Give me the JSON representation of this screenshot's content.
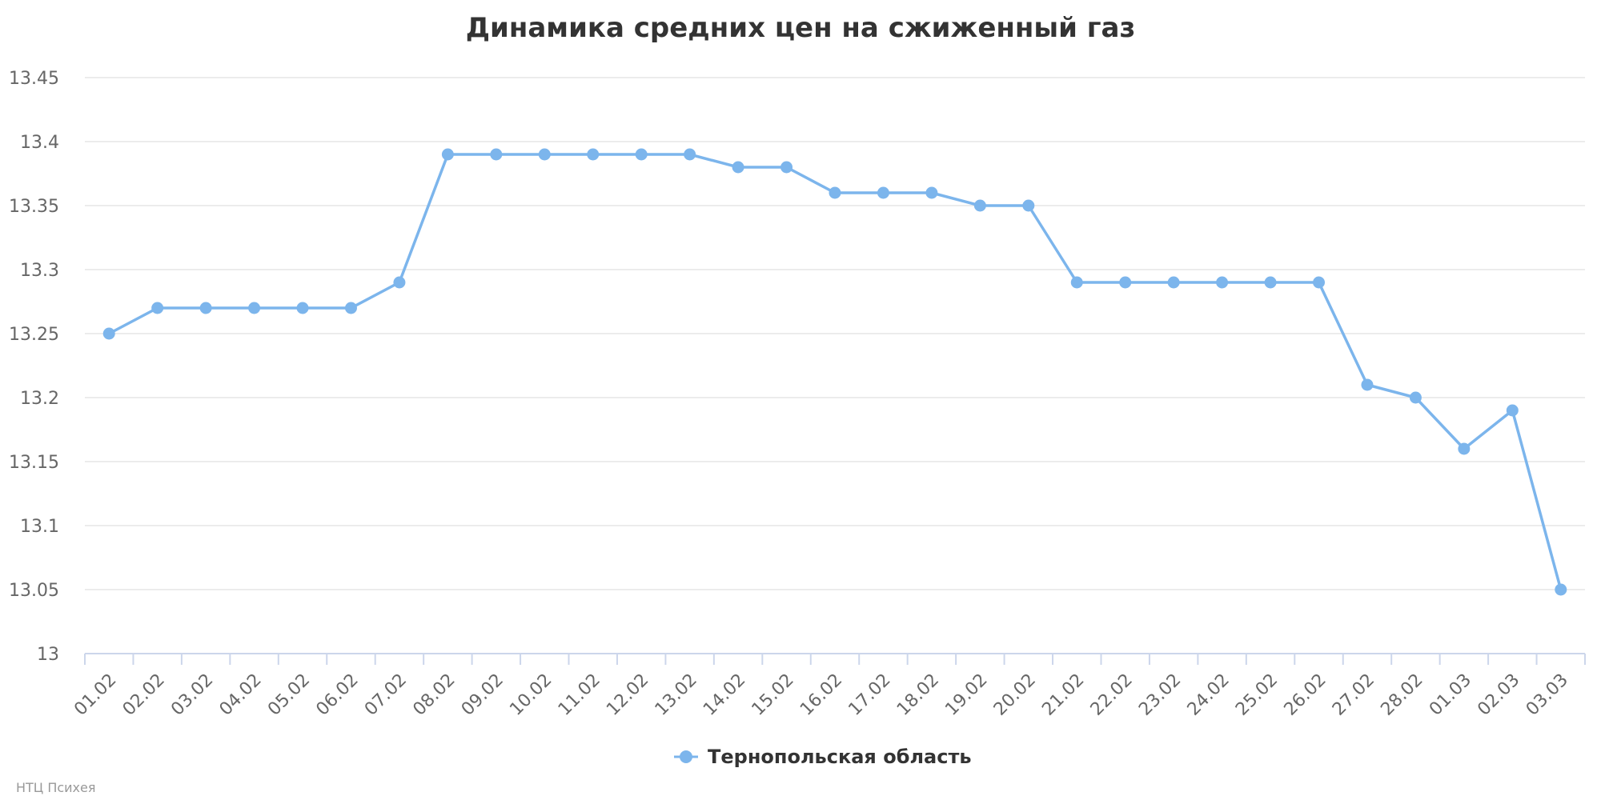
{
  "chart_data": {
    "type": "line",
    "title": "Динамика средних цен на сжиженный газ",
    "xlabel": "",
    "ylabel": "",
    "categories": [
      "01.02",
      "02.02",
      "03.02",
      "04.02",
      "05.02",
      "06.02",
      "07.02",
      "08.02",
      "09.02",
      "10.02",
      "11.02",
      "12.02",
      "13.02",
      "14.02",
      "15.02",
      "16.02",
      "17.02",
      "18.02",
      "19.02",
      "20.02",
      "21.02",
      "22.02",
      "23.02",
      "24.02",
      "25.02",
      "26.02",
      "27.02",
      "28.02",
      "01.03",
      "02.03",
      "03.03"
    ],
    "series": [
      {
        "name": "Тернопольская область",
        "color": "#7cb5ec",
        "values": [
          13.25,
          13.27,
          13.27,
          13.27,
          13.27,
          13.27,
          13.29,
          13.39,
          13.39,
          13.39,
          13.39,
          13.39,
          13.39,
          13.38,
          13.38,
          13.36,
          13.36,
          13.36,
          13.35,
          13.35,
          13.29,
          13.29,
          13.29,
          13.29,
          13.29,
          13.29,
          13.21,
          13.2,
          13.16,
          13.19,
          13.05
        ]
      }
    ],
    "ylim": [
      13,
      13.45
    ],
    "yticks": [
      "13",
      "13.05",
      "13.1",
      "13.15",
      "13.2",
      "13.25",
      "13.3",
      "13.35",
      "13.4",
      "13.45"
    ],
    "grid": true,
    "legend_position": "bottom-center"
  },
  "credits": "НТЦ Психея"
}
